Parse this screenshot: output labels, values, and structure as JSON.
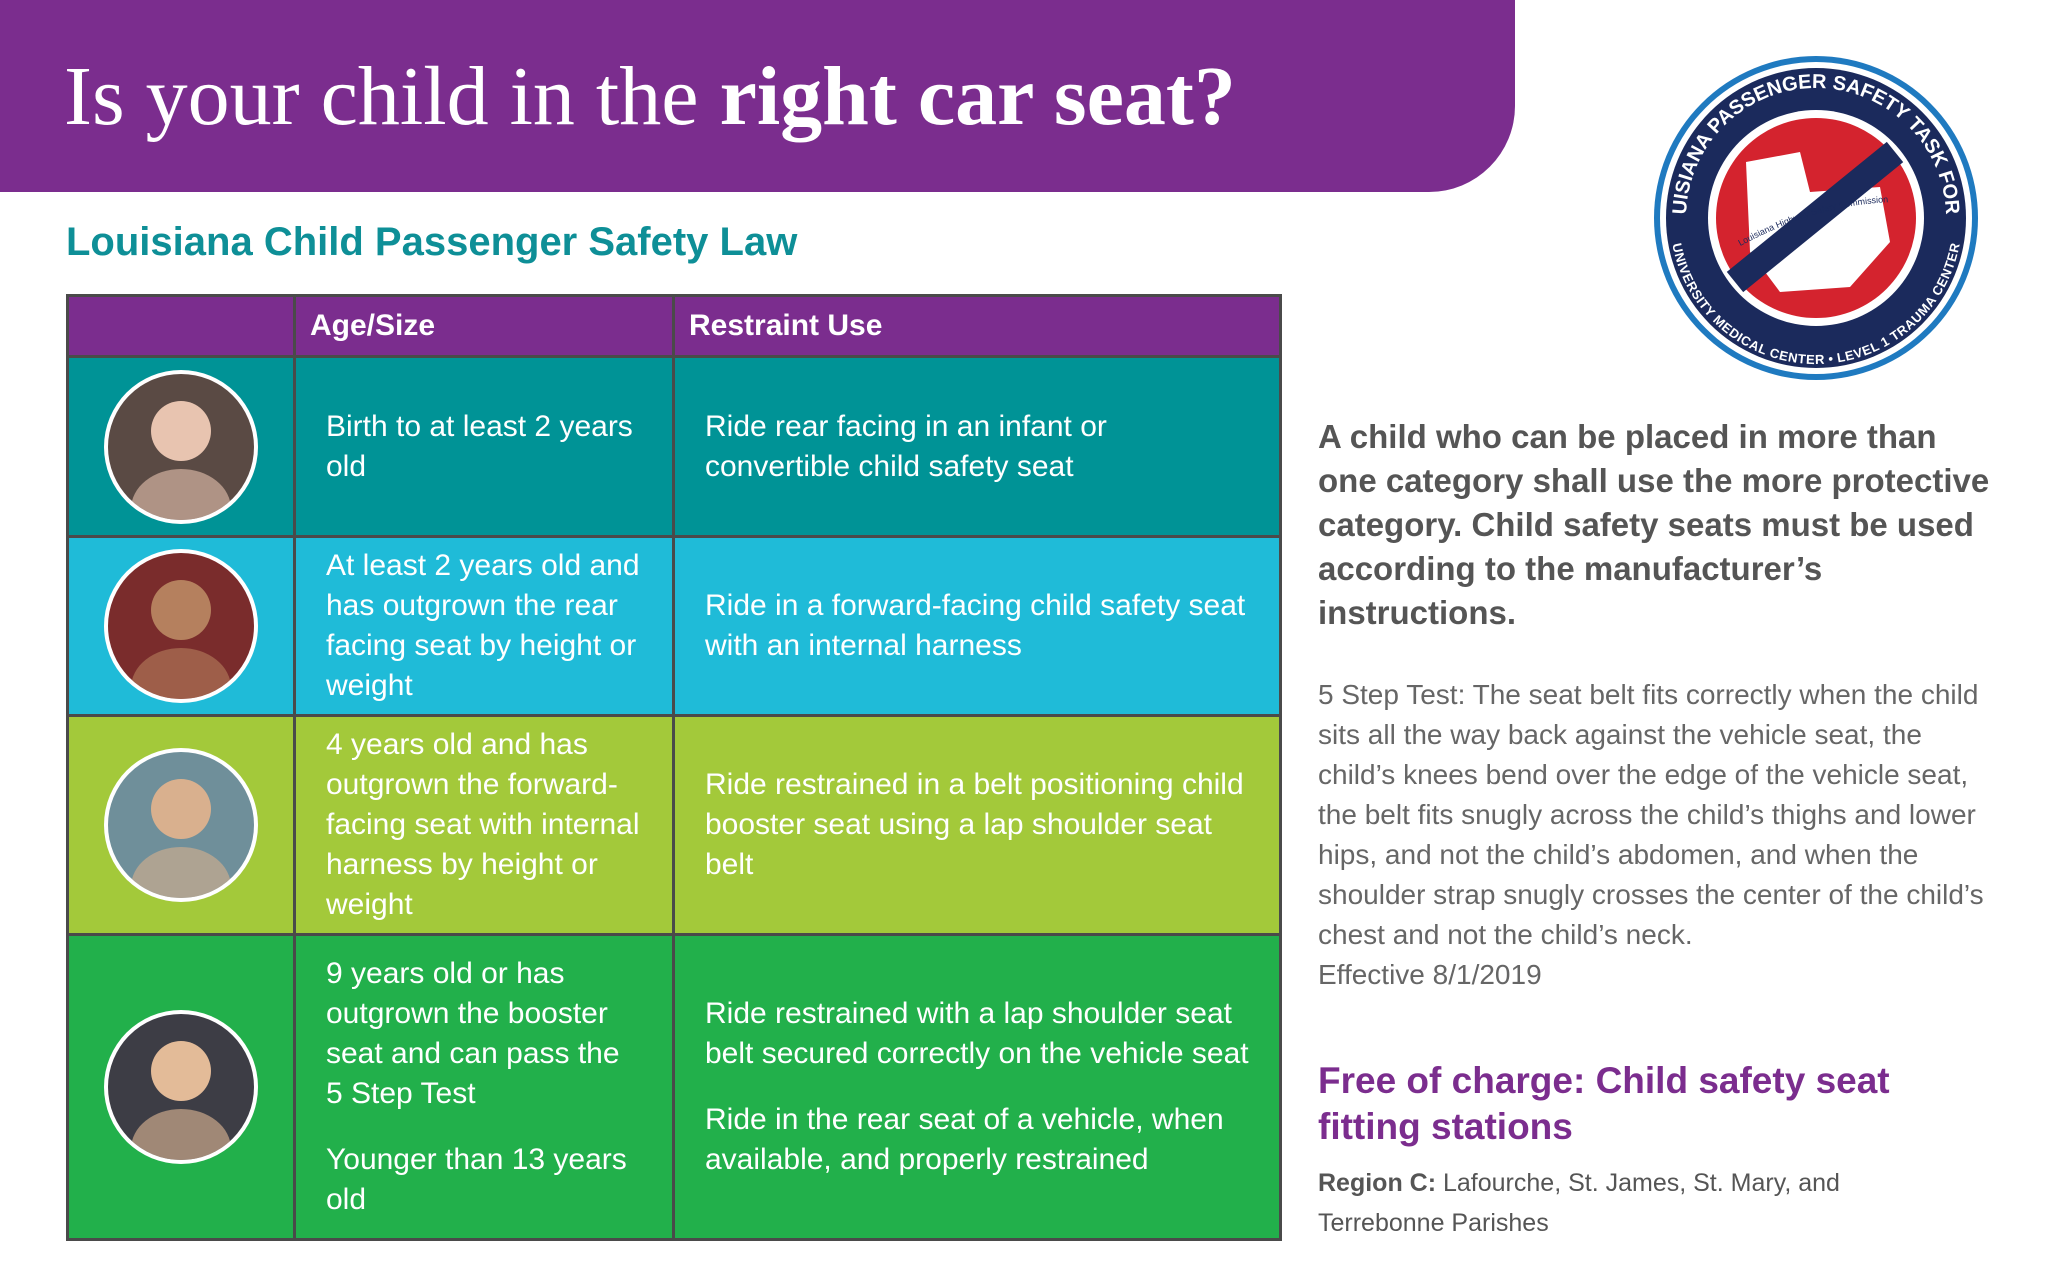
{
  "header": {
    "title_plain": "Is your child in the",
    "title_bold": "right car seat?"
  },
  "subtitle": "Louisiana Child Passenger Safety Law",
  "table": {
    "headers": [
      "Age/Size",
      "Restraint Use"
    ],
    "rows": [
      {
        "age": [
          "Birth to at least 2 years old"
        ],
        "restraint": [
          "Ride rear facing in an infant or convertible child safety seat"
        ]
      },
      {
        "age": [
          "At least 2 years old and has outgrown the rear facing seat by height or weight"
        ],
        "restraint": [
          "Ride in a forward-facing child safety seat with an internal harness"
        ]
      },
      {
        "age": [
          "4 years old and has outgrown the forward-facing seat with internal harness by height or weight"
        ],
        "restraint": [
          "Ride restrained in a belt positioning child booster seat using a lap shoulder seat belt"
        ]
      },
      {
        "age": [
          "9 years old or has outgrown the booster seat and can pass the  5 Step Test",
          "Younger than 13 years old"
        ],
        "restraint": [
          "Ride restrained with a lap shoulder seat belt secured correctly on the vehicle seat",
          "Ride in the rear seat of a vehicle, when available, and properly restrained"
        ]
      }
    ]
  },
  "logo": {
    "top": "LOUISIANA PASSENGER SAFETY TASK FORCE",
    "inner": "Louisiana Highway Safety Commission",
    "bottom": "UNIVERSITY MEDICAL CENTER • LEVEL 1 TRAUMA CENTER"
  },
  "side": {
    "note": "A child who can be placed in more than one category shall use the more protective category. Child safety seats must be used according to the manufacturer’s instructions.",
    "test": "5 Step Test: The seat belt fits correctly when the child sits all the way back against the vehicle seat, the child’s knees bend over the edge of the vehicle seat, the belt fits snugly across the child’s thighs and lower hips, and not the child’s abdomen, and when the shoulder strap snugly crosses the center of the child’s chest and not the child’s neck.",
    "effective": "Effective 8/1/2019",
    "free_title": "Free of charge: Child safety seat fitting stations",
    "region_label": "Region C:",
    "region_text": "Lafourche, St. James, St. Mary, and Terrebonne Parishes"
  }
}
